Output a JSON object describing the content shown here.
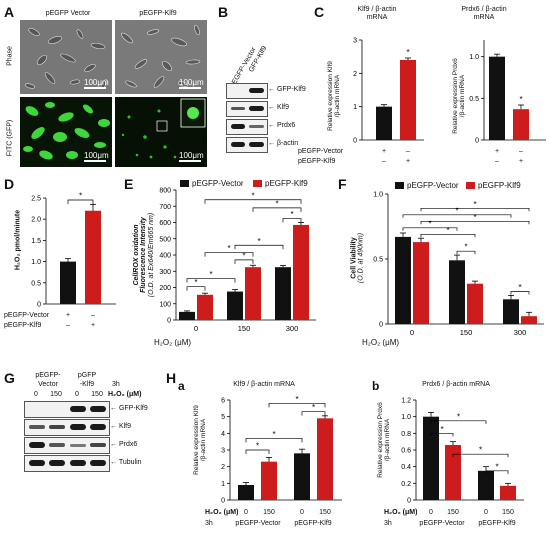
{
  "A": {
    "label": "A",
    "col_vector": "pEGFP Vector",
    "col_klf9": "pEGFP-Klf9",
    "row_phase": "Phase",
    "row_fitc": "FITC (GFP)",
    "scale": "100μm"
  },
  "B": {
    "label": "B",
    "lane1": "EGFP-Vector",
    "lane2": "GFP-Klf9",
    "bands": [
      "GFP-Klf9",
      "Klf9",
      "Prdx6",
      "β-actin"
    ]
  },
  "C": {
    "label": "C",
    "charts": [
      {
        "title_line1": "Klf9 / β-actin",
        "title_line2": "mRNA",
        "ylabel_line1": "Relative expression Klf9",
        "ylabel_line2": "/β-actin mRNA"
      },
      {
        "title_line1": "Prdx6 / β-actin",
        "title_line2": "mRNA",
        "ylabel_line1": "Relative expression Prdx6",
        "ylabel_line2": "/β-actin mRNA"
      }
    ],
    "row1": "pEGFP-Vector",
    "row2": "pEGFP-Klf9",
    "plus": "+",
    "minus": "–",
    "star": "*"
  },
  "D": {
    "label": "D",
    "ylabel": "H₂O₂ pmol/minute",
    "row1": "pEGFP-Vector",
    "row2": "pEGFP-Klf9",
    "plus": "+",
    "minus": "–",
    "star": "*"
  },
  "E": {
    "label": "E",
    "legend1": "pEGFP-Vector",
    "legend2": "pEGFP-Klf9",
    "ylabel_line1": "CellROX oxidation",
    "ylabel_line2": "Fluorescence Intensity",
    "ylabel_line3": "(O.D. at Ex640/Em665 nm)",
    "xlabel": "H₂O₂ (μM)"
  },
  "F": {
    "label": "F",
    "legend1": "pEGFP-Vector",
    "legend2": "pEGFP-Klf9",
    "ylabel_line1": "Cell Viability",
    "ylabel_line2": "(O.D. at 490nm)",
    "xlabel": "H₂O₂ (μM)"
  },
  "G": {
    "label": "G",
    "col1": "pEGFP-",
    "col1b": "Vector",
    "col2": "pGFP",
    "col2b": "-Klf9",
    "time": "3h",
    "doses": [
      "0",
      "150",
      "0",
      "150"
    ],
    "doselabel": "H₂O₂ (μM)",
    "bands": [
      "GFP-Klf9",
      "Klf9",
      "Prdx6",
      "Tubulin"
    ]
  },
  "H": {
    "label": "H",
    "suba": "a",
    "subb": "b",
    "title_a": "Klf9 / β-actin mRNA",
    "title_b": "Prdx6 / β-actin mRNA",
    "ylabel_a_line1": "Relative expression Klf9",
    "ylabel_a_line2": "/β-actin mRNA",
    "ylabel_b_line1": "Relative expression Prdx6",
    "ylabel_b_line2": "/β-actin mRNA",
    "h2o2": "H₂O₂ (μM)",
    "time": "3h",
    "doses": [
      "0",
      "150",
      "0",
      "150"
    ],
    "group1": "pEGFP-Vector",
    "group2": "pEGFP-Klf9"
  },
  "colors": {
    "vector": "#111111",
    "klf9": "#cc1c1c",
    "sig": "*"
  },
  "chart_data": [
    {
      "type": "bar",
      "panel": "C-left",
      "categories": [
        "pEGFP-Vector",
        "pEGFP-Klf9"
      ],
      "values": [
        1.0,
        2.4
      ],
      "errors": [
        0.06,
        0.06
      ],
      "ylim": [
        0,
        3
      ],
      "yticks": [
        0,
        1,
        2,
        3
      ]
    },
    {
      "type": "bar",
      "panel": "C-right",
      "categories": [
        "pEGFP-Vector",
        "pEGFP-Klf9"
      ],
      "values": [
        1.0,
        0.37
      ],
      "errors": [
        0.03,
        0.05
      ],
      "ylim": [
        0,
        1.2
      ],
      "yticks": [
        0,
        0.5,
        1.0
      ]
    },
    {
      "type": "bar",
      "panel": "D",
      "categories": [
        "pEGFP-Vector",
        "pEGFP-Klf9"
      ],
      "values": [
        1.0,
        2.2
      ],
      "errors": [
        0.07,
        0.15
      ],
      "ylim": [
        0,
        2.5
      ],
      "yticks": [
        0,
        0.5,
        1.0,
        1.5,
        2.0,
        2.5
      ]
    },
    {
      "type": "bar",
      "panel": "E",
      "categories": [
        "0",
        "150",
        "300"
      ],
      "ylim": [
        0,
        800
      ],
      "yticks": [
        0,
        100,
        200,
        300,
        400,
        500,
        600,
        700,
        800
      ],
      "series": [
        {
          "name": "pEGFP-Vector",
          "values": [
            50,
            175,
            325
          ],
          "errors": [
            6,
            12,
            10
          ]
        },
        {
          "name": "pEGFP-Klf9",
          "values": [
            155,
            325,
            585
          ],
          "errors": [
            10,
            12,
            15
          ]
        }
      ]
    },
    {
      "type": "bar",
      "panel": "F",
      "categories": [
        "0",
        "150",
        "300"
      ],
      "ylim": [
        0,
        1.0
      ],
      "yticks": [
        0,
        0.5,
        1.0
      ],
      "series": [
        {
          "name": "pEGFP-Vector",
          "values": [
            0.67,
            0.49,
            0.19
          ],
          "errors": [
            0.03,
            0.04,
            0.03
          ]
        },
        {
          "name": "pEGFP-Klf9",
          "values": [
            0.63,
            0.31,
            0.06
          ],
          "errors": [
            0.03,
            0.02,
            0.03
          ]
        }
      ]
    },
    {
      "type": "bar",
      "panel": "H-a",
      "categories": [
        "0",
        "150",
        "0",
        "150"
      ],
      "values": [
        0.9,
        2.3,
        2.8,
        4.9
      ],
      "errors": [
        0.15,
        0.25,
        0.25,
        0.15
      ],
      "ylim": [
        0,
        6
      ],
      "yticks": [
        0,
        1,
        2,
        3,
        4,
        5,
        6
      ]
    },
    {
      "type": "bar",
      "panel": "H-b",
      "categories": [
        "0",
        "150",
        "0",
        "150"
      ],
      "values": [
        1.0,
        0.66,
        0.35,
        0.17
      ],
      "errors": [
        0.05,
        0.04,
        0.05,
        0.03
      ],
      "ylim": [
        0,
        1.2
      ],
      "yticks": [
        0,
        0.2,
        0.4,
        0.6,
        0.8,
        1.0,
        1.2
      ]
    }
  ]
}
